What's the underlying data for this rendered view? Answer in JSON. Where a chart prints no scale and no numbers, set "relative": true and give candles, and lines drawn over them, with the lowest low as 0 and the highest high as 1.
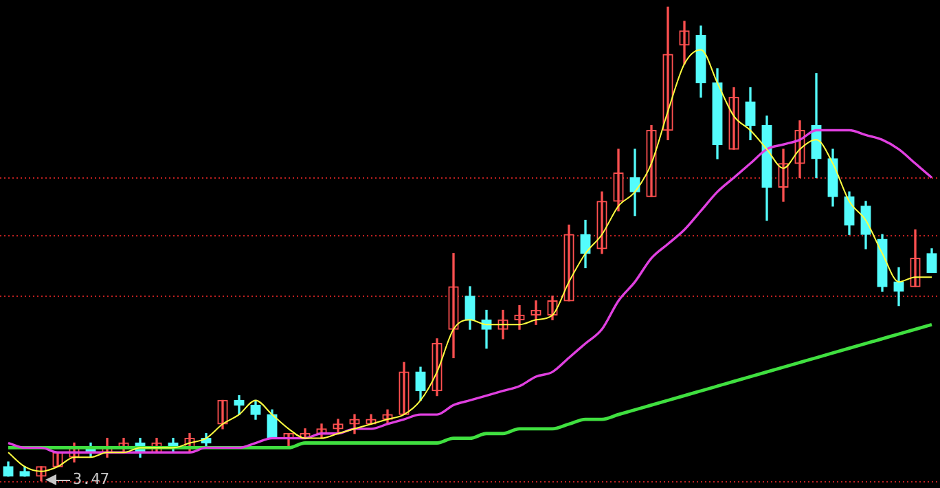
{
  "chart_data": {
    "type": "candlestick",
    "relative": true,
    "tick_labels": false,
    "legend": false,
    "marker": "none",
    "line_style": "solid",
    "categories": [
      null,
      null,
      null,
      null,
      null,
      null,
      null,
      null,
      null,
      null,
      null,
      null,
      null,
      null,
      null,
      null,
      null,
      null,
      null,
      null,
      null,
      null,
      null,
      null,
      null,
      null,
      null,
      null,
      null,
      null,
      null,
      null,
      null,
      null,
      null,
      null,
      null,
      null,
      null,
      null,
      null,
      null,
      null,
      null,
      null,
      null,
      null,
      null,
      null,
      null,
      null,
      null,
      null,
      null,
      null,
      null,
      null
    ],
    "series": [
      {
        "ohlc": [
          [
            0.03,
            0.04,
            0.01,
            0.01
          ],
          [
            0.02,
            0.03,
            0.01,
            0.01
          ],
          [
            0.01,
            0.03,
            0,
            0.03
          ],
          [
            0.03,
            0.06,
            0.03,
            0.06
          ],
          [
            0.05,
            0.08,
            0.04,
            0.07
          ],
          [
            0.07,
            0.08,
            0.05,
            0.06
          ],
          [
            0.06,
            0.09,
            0.05,
            0.07
          ],
          [
            0.07,
            0.09,
            0.06,
            0.08
          ],
          [
            0.08,
            0.09,
            0.05,
            0.06
          ],
          [
            0.06,
            0.09,
            0.06,
            0.08
          ],
          [
            0.08,
            0.09,
            0.06,
            0.07
          ],
          [
            0.07,
            0.1,
            0.06,
            0.09
          ],
          [
            0.09,
            0.1,
            0.07,
            0.08
          ],
          [
            0.12,
            0.17,
            0.11,
            0.17
          ],
          [
            0.17,
            0.18,
            0.14,
            0.16
          ],
          [
            0.16,
            0.17,
            0.13,
            0.14
          ],
          [
            0.14,
            0.15,
            0.09,
            0.09
          ],
          [
            0.09,
            0.1,
            0.07,
            0.1
          ],
          [
            0.09,
            0.11,
            0.09,
            0.1
          ],
          [
            0.1,
            0.12,
            0.09,
            0.11
          ],
          [
            0.11,
            0.13,
            0.1,
            0.12
          ],
          [
            0.12,
            0.14,
            0.1,
            0.13
          ],
          [
            0.12,
            0.14,
            0.12,
            0.13
          ],
          [
            0.13,
            0.15,
            0.12,
            0.14
          ],
          [
            0.14,
            0.25,
            0.14,
            0.23
          ],
          [
            0.23,
            0.24,
            0.17,
            0.19
          ],
          [
            0.19,
            0.3,
            0.18,
            0.29
          ],
          [
            0.32,
            0.48,
            0.26,
            0.41
          ],
          [
            0.39,
            0.41,
            0.32,
            0.34
          ],
          [
            0.34,
            0.36,
            0.28,
            0.32
          ],
          [
            0.32,
            0.36,
            0.3,
            0.34
          ],
          [
            0.34,
            0.37,
            0.32,
            0.35
          ],
          [
            0.35,
            0.38,
            0.33,
            0.36
          ],
          [
            0.35,
            0.39,
            0.34,
            0.38
          ],
          [
            0.38,
            0.54,
            0.38,
            0.52
          ],
          [
            0.52,
            0.55,
            0.45,
            0.48
          ],
          [
            0.49,
            0.61,
            0.48,
            0.59
          ],
          [
            0.59,
            0.7,
            0.57,
            0.65
          ],
          [
            0.64,
            0.7,
            0.56,
            0.61
          ],
          [
            0.6,
            0.75,
            0.6,
            0.74
          ],
          [
            0.74,
            1,
            0.72,
            0.9
          ],
          [
            0.92,
            0.97,
            0.88,
            0.95
          ],
          [
            0.94,
            0.96,
            0.81,
            0.84
          ],
          [
            0.84,
            0.87,
            0.68,
            0.71
          ],
          [
            0.7,
            0.83,
            0.7,
            0.81
          ],
          [
            0.8,
            0.83,
            0.72,
            0.75
          ],
          [
            0.75,
            0.77,
            0.55,
            0.62
          ],
          [
            0.62,
            0.7,
            0.59,
            0.67
          ],
          [
            0.67,
            0.76,
            0.64,
            0.74
          ],
          [
            0.75,
            0.86,
            0.64,
            0.68
          ],
          [
            0.68,
            0.7,
            0.58,
            0.6
          ],
          [
            0.6,
            0.61,
            0.52,
            0.54
          ],
          [
            0.58,
            0.59,
            0.49,
            0.52
          ],
          [
            0.51,
            0.52,
            0.4,
            0.41
          ],
          [
            0.42,
            0.45,
            0.37,
            0.4
          ],
          [
            0.41,
            0.53,
            0.41,
            0.47
          ],
          [
            0.48,
            0.49,
            0.44,
            0.44
          ]
        ],
        "colors": [
          "#54fcfc",
          "#54fcfc",
          "#ff5050",
          "#ff5050",
          "#ff5050",
          "#54fcfc",
          "#ff5050",
          "#ff5050",
          "#54fcfc",
          "#ff5050",
          "#54fcfc",
          "#ff5050",
          "#54fcfc",
          "#ff5050",
          "#54fcfc",
          "#54fcfc",
          "#54fcfc",
          "#ff5050",
          "#ff5050",
          "#ff5050",
          "#ff5050",
          "#ff5050",
          "#ff5050",
          "#ff5050",
          "#ff5050",
          "#54fcfc",
          "#ff5050",
          "#ff5050",
          "#54fcfc",
          "#54fcfc",
          "#ff5050",
          "#ff5050",
          "#ff5050",
          "#ff5050",
          "#ff5050",
          "#54fcfc",
          "#ff5050",
          "#ff5050",
          "#54fcfc",
          "#ff5050",
          "#ff5050",
          "#ff5050",
          "#54fcfc",
          "#54fcfc",
          "#ff5050",
          "#54fcfc",
          "#54fcfc",
          "#ff5050",
          "#ff5050",
          "#54fcfc",
          "#54fcfc",
          "#54fcfc",
          "#54fcfc",
          "#54fcfc",
          "#54fcfc",
          "#ff5050",
          "#54fcfc"
        ]
      },
      {
        "type": "line",
        "color": "#ffff40",
        "values": [
          0.06,
          0.03,
          0.02,
          0.03,
          0.05,
          0.05,
          0.06,
          0.06,
          0.07,
          0.07,
          0.07,
          0.08,
          0.09,
          0.12,
          0.14,
          0.17,
          0.14,
          0.11,
          0.09,
          0.09,
          0.1,
          0.11,
          0.12,
          0.13,
          0.14,
          0.17,
          0.23,
          0.32,
          0.34,
          0.33,
          0.33,
          0.33,
          0.34,
          0.35,
          0.42,
          0.48,
          0.52,
          0.58,
          0.61,
          0.67,
          0.78,
          0.88,
          0.91,
          0.84,
          0.77,
          0.74,
          0.7,
          0.66,
          0.7,
          0.72,
          0.67,
          0.59,
          0.55,
          0.48,
          0.42,
          0.43,
          0.43
        ]
      },
      {
        "type": "line",
        "color": "#e040e0",
        "values": [
          0.08,
          0.07,
          0.07,
          0.06,
          0.06,
          0.06,
          0.06,
          0.06,
          0.06,
          0.06,
          0.06,
          0.06,
          0.07,
          0.07,
          0.07,
          0.08,
          0.09,
          0.09,
          0.09,
          0.1,
          0.1,
          0.11,
          0.11,
          0.12,
          0.13,
          0.14,
          0.14,
          0.16,
          0.17,
          0.18,
          0.19,
          0.2,
          0.22,
          0.23,
          0.26,
          0.29,
          0.32,
          0.38,
          0.42,
          0.47,
          0.5,
          0.53,
          0.57,
          0.61,
          0.64,
          0.67,
          0.7,
          0.71,
          0.72,
          0.74,
          0.74,
          0.74,
          0.73,
          0.72,
          0.7,
          0.67,
          0.64
        ]
      },
      {
        "type": "line",
        "color": "#40e040",
        "values": [
          0.07,
          0.07,
          0.07,
          0.07,
          0.07,
          0.07,
          0.07,
          0.07,
          0.07,
          0.07,
          0.07,
          0.07,
          0.07,
          0.07,
          0.07,
          0.07,
          0.07,
          0.07,
          0.08,
          0.08,
          0.08,
          0.08,
          0.08,
          0.08,
          0.08,
          0.08,
          0.08,
          0.09,
          0.09,
          0.1,
          0.1,
          0.11,
          0.11,
          0.11,
          0.12,
          0.13,
          0.13,
          0.14,
          0.15,
          0.16,
          0.17,
          0.18,
          0.19,
          0.2,
          0.21,
          0.22,
          0.23,
          0.24,
          0.25,
          0.26,
          0.27,
          0.28,
          0.29,
          0.3,
          0.31,
          0.32,
          0.33
        ]
      }
    ],
    "ref_lines": [
      {
        "axis": "y",
        "value": 0.64,
        "color": "#c02020",
        "line_style": "dotted"
      },
      {
        "axis": "y",
        "value": 0.52,
        "color": "#c02020",
        "line_style": "dotted"
      },
      {
        "axis": "y",
        "value": 0.39,
        "color": "#c02020",
        "line_style": "dotted"
      },
      {
        "axis": "y",
        "value": 0,
        "color": "#c02020",
        "line_style": "dotted"
      }
    ],
    "annotations": [
      {
        "text": "3.47",
        "y": 0
      }
    ]
  }
}
